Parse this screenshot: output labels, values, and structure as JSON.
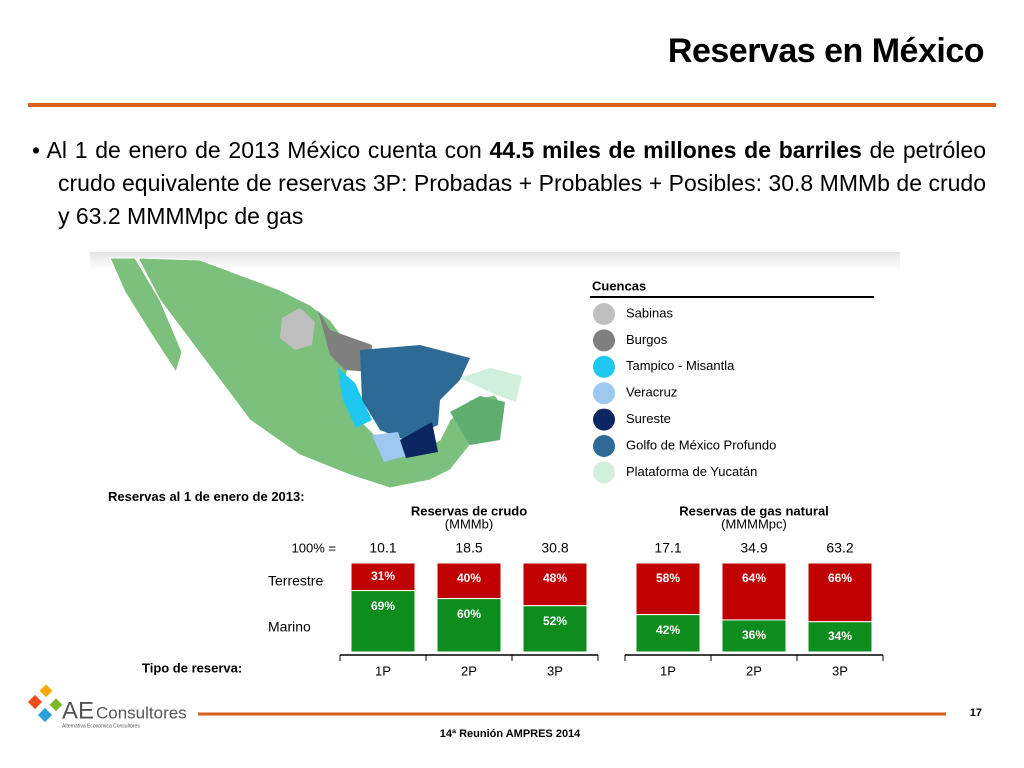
{
  "header": {
    "title": "Reservas en México"
  },
  "bullet": {
    "before": "Al 1 de enero de 2013 México cuenta con ",
    "bold": "44.5 miles de millones de barriles",
    "after": " de petróleo crudo equivalente de reservas 3P: Probadas + Probables + Posibles: 30.8 MMMb de crudo y 63.2 MMMMpc de gas"
  },
  "legend": {
    "title": "Cuencas",
    "items": [
      {
        "label": "Sabinas",
        "color": "#bfbfbf"
      },
      {
        "label": "Burgos",
        "color": "#7f7f7f"
      },
      {
        "label": "Tampico - Misantla",
        "color": "#1ec8f0"
      },
      {
        "label": "Veracruz",
        "color": "#9dc8f0"
      },
      {
        "label": "Sureste",
        "color": "#0b2660"
      },
      {
        "label": "Golfo de México Profundo",
        "color": "#2e6a96"
      },
      {
        "label": "Plataforma de Yucatán",
        "color": "#d2eedd"
      }
    ]
  },
  "panel": {
    "date_label": "Reservas al 1 de enero de 2013:",
    "total_label": "100% =",
    "type_label": "Tipo de reserva:"
  },
  "chart_data": [
    {
      "type": "bar",
      "title": "Reservas de crudo",
      "subtitle": "(MMMb)",
      "categories": [
        "1P",
        "2P",
        "3P"
      ],
      "totals": [
        10.1,
        18.5,
        30.8
      ],
      "series": [
        {
          "name": "Terrestre",
          "color": "#c00000",
          "values": [
            31,
            40,
            48
          ],
          "value_labels": [
            "31%",
            "40%",
            "48%"
          ]
        },
        {
          "name": "Marino",
          "color": "#0e8c1e",
          "values": [
            69,
            60,
            52
          ],
          "value_labels": [
            "69%",
            "60%",
            "52%"
          ]
        }
      ]
    },
    {
      "type": "bar",
      "title": "Reservas de gas natural",
      "subtitle": "(MMMMpc)",
      "categories": [
        "1P",
        "2P",
        "3P"
      ],
      "totals": [
        17.1,
        34.9,
        63.2
      ],
      "series": [
        {
          "color": "#c00000",
          "values": [
            58,
            64,
            66
          ],
          "value_labels": [
            "58%",
            "64%",
            "66%"
          ]
        },
        {
          "color": "#0e8c1e",
          "values": [
            42,
            36,
            34
          ],
          "value_labels": [
            "42%",
            "36%",
            "34%"
          ]
        }
      ]
    }
  ],
  "footer": {
    "page": "17",
    "event": "14ª Reunión AMPRES 2014",
    "logo": "AE",
    "logo_word": "Consultores",
    "logo_tagline": "Alternativa Económica Consultores"
  }
}
